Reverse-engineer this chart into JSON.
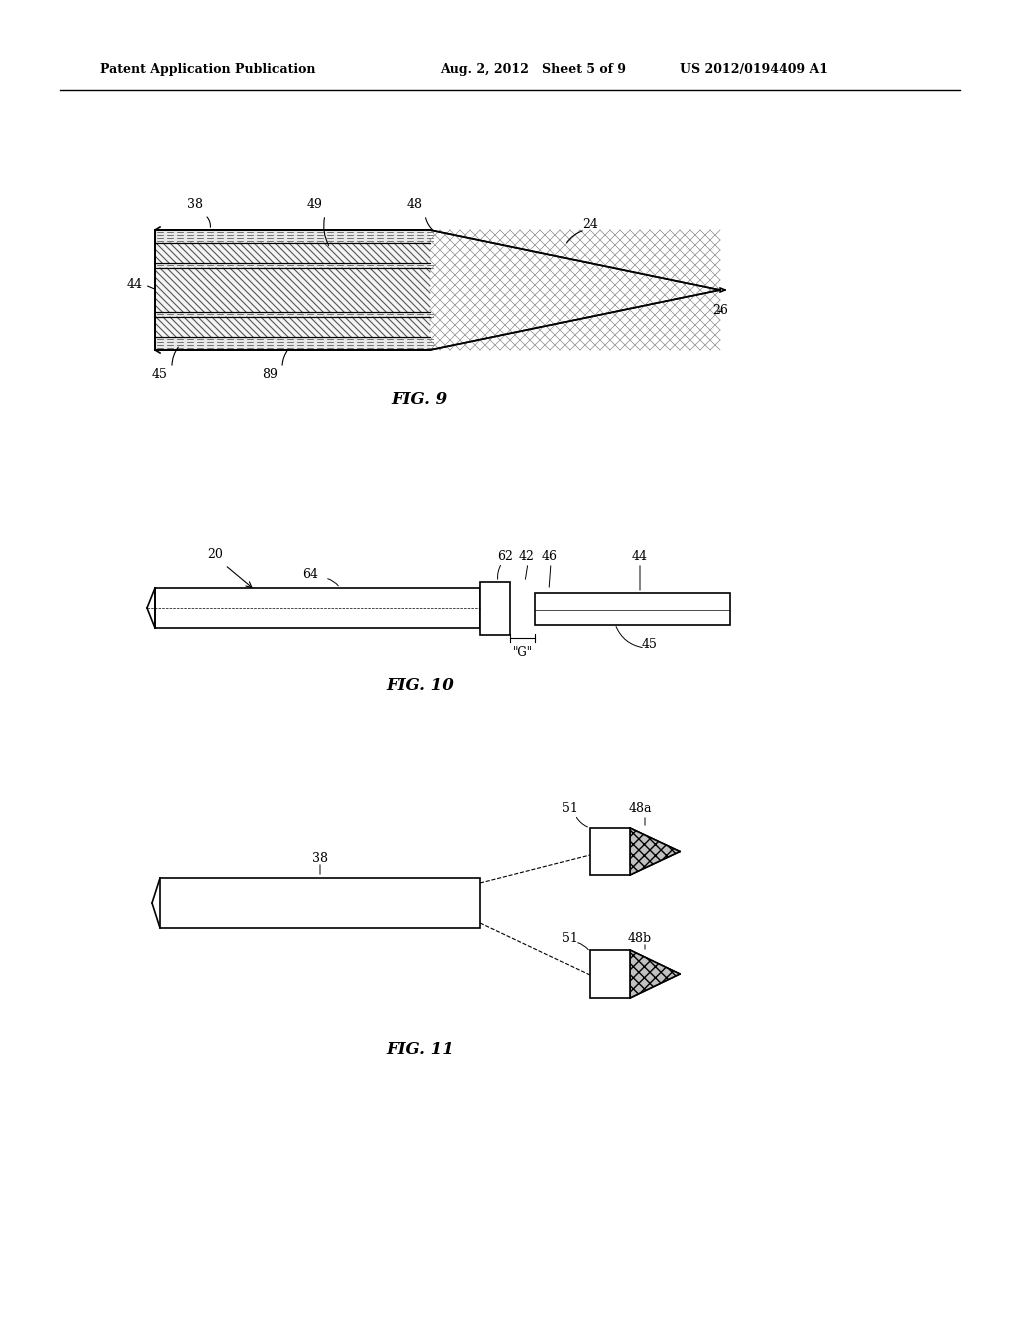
{
  "header_left": "Patent Application Publication",
  "header_mid": "Aug. 2, 2012   Sheet 5 of 9",
  "header_right": "US 2012/0194409 A1",
  "fig9_label": "FIG. 9",
  "fig10_label": "FIG. 10",
  "fig11_label": "FIG. 11",
  "bg_color": "#ffffff",
  "line_color": "#000000"
}
